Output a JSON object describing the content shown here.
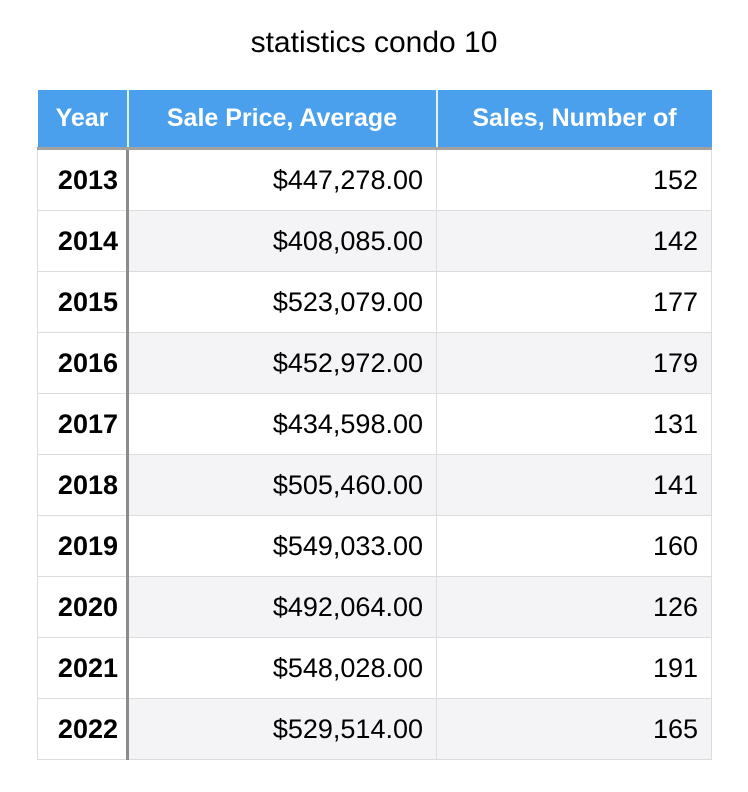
{
  "title": "statistics condo 10",
  "table": {
    "columns": [
      "Year",
      "Sale Price, Average",
      "Sales, Number of"
    ],
    "rows": [
      {
        "year": "2013",
        "avg_price": "$447,278.00",
        "num_sales": "152"
      },
      {
        "year": "2014",
        "avg_price": "$408,085.00",
        "num_sales": "142"
      },
      {
        "year": "2015",
        "avg_price": "$523,079.00",
        "num_sales": "177"
      },
      {
        "year": "2016",
        "avg_price": "$452,972.00",
        "num_sales": "179"
      },
      {
        "year": "2017",
        "avg_price": "$434,598.00",
        "num_sales": "131"
      },
      {
        "year": "2018",
        "avg_price": "$505,460.00",
        "num_sales": "141"
      },
      {
        "year": "2019",
        "avg_price": "$549,033.00",
        "num_sales": "160"
      },
      {
        "year": "2020",
        "avg_price": "$492,064.00",
        "num_sales": "126"
      },
      {
        "year": "2021",
        "avg_price": "$548,028.00",
        "num_sales": "191"
      },
      {
        "year": "2022",
        "avg_price": "$529,514.00",
        "num_sales": "165"
      }
    ]
  },
  "colors": {
    "header_bg": "#4aa0ec",
    "header_text": "#ffffff",
    "header_bottom_border": "#a3a29e",
    "year_divider": "#8c8b87",
    "cell_border": "#dcdcdc",
    "stripe_bg": "#f4f4f6",
    "text": "#000000"
  },
  "chart_data": {
    "type": "table",
    "title": "statistics condo 10",
    "columns": [
      "Year",
      "Sale Price, Average",
      "Sales, Number of"
    ],
    "categories": [
      2013,
      2014,
      2015,
      2016,
      2017,
      2018,
      2019,
      2020,
      2021,
      2022
    ],
    "series": [
      {
        "name": "Sale Price, Average",
        "values": [
          447278,
          408085,
          523079,
          452972,
          434598,
          505460,
          549033,
          492064,
          548028,
          529514
        ],
        "format": "currency_usd"
      },
      {
        "name": "Sales, Number of",
        "values": [
          152,
          142,
          177,
          179,
          131,
          141,
          160,
          126,
          191,
          165
        ],
        "format": "integer"
      }
    ]
  }
}
